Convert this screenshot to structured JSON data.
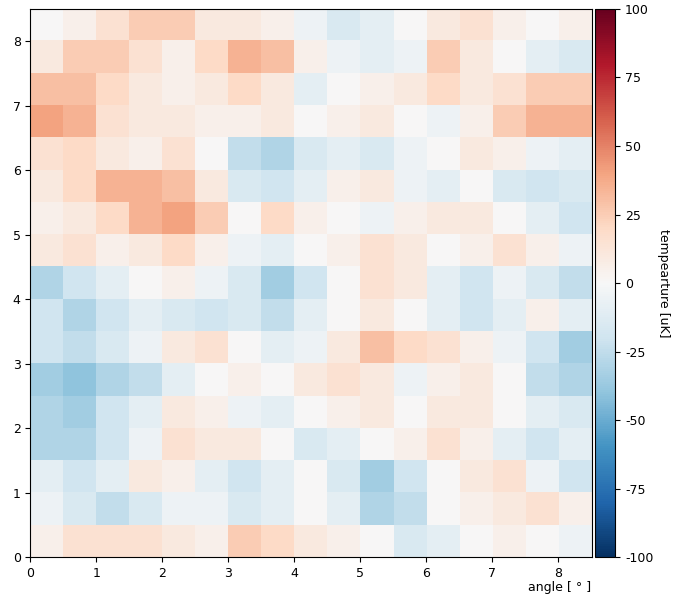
{
  "chart_data": {
    "type": "heatmap",
    "x_label": "angle [ ° ]",
    "colorbar_label": "tempearture [uK]",
    "xlim": [
      0,
      8.5
    ],
    "ylim": [
      0,
      8.5
    ],
    "xticks": [
      0,
      1,
      2,
      3,
      4,
      5,
      6,
      7,
      8
    ],
    "yticks": [
      0,
      1,
      2,
      3,
      4,
      5,
      6,
      7,
      8
    ],
    "colorbar_range": [
      -100,
      100
    ],
    "colorbar_ticks": [
      -100,
      -75,
      -50,
      -25,
      0,
      25,
      50,
      75,
      100
    ],
    "cells": [
      [
        5,
        15,
        15,
        15,
        10,
        5,
        25,
        20,
        10,
        5,
        0,
        -15,
        -10,
        0,
        5,
        0,
        -5
      ],
      [
        -5,
        -15,
        -25,
        -15,
        -5,
        -5,
        -15,
        -10,
        0,
        -10,
        -30,
        -25,
        0,
        5,
        10,
        15,
        5
      ],
      [
        -10,
        -20,
        -10,
        10,
        5,
        -10,
        -20,
        -10,
        0,
        -15,
        -35,
        -20,
        0,
        10,
        15,
        -5,
        -20
      ],
      [
        -30,
        -30,
        -20,
        -5,
        15,
        10,
        10,
        0,
        -15,
        -10,
        0,
        5,
        15,
        5,
        -10,
        -20,
        -10
      ],
      [
        -30,
        -35,
        -20,
        -10,
        10,
        5,
        -5,
        -10,
        0,
        5,
        10,
        0,
        10,
        10,
        0,
        -10,
        -15
      ],
      [
        -35,
        -40,
        -30,
        -25,
        -10,
        0,
        5,
        0,
        10,
        15,
        10,
        -5,
        5,
        10,
        0,
        -25,
        -30
      ],
      [
        -20,
        -25,
        -15,
        -5,
        10,
        15,
        0,
        -10,
        -5,
        10,
        30,
        20,
        15,
        5,
        -5,
        -20,
        -35
      ],
      [
        -20,
        -30,
        -20,
        -10,
        -15,
        -20,
        -15,
        -25,
        -10,
        0,
        10,
        0,
        -10,
        -20,
        -10,
        5,
        -10
      ],
      [
        -30,
        -20,
        -10,
        0,
        5,
        -5,
        -15,
        -35,
        -20,
        0,
        15,
        10,
        -10,
        -20,
        -5,
        -15,
        -25
      ],
      [
        10,
        15,
        5,
        10,
        20,
        5,
        -5,
        -10,
        0,
        5,
        15,
        10,
        0,
        5,
        15,
        5,
        -5
      ],
      [
        5,
        10,
        20,
        35,
        40,
        25,
        0,
        20,
        5,
        0,
        -5,
        5,
        10,
        10,
        0,
        -10,
        -20
      ],
      [
        10,
        20,
        35,
        35,
        30,
        10,
        -15,
        -20,
        -10,
        5,
        10,
        -5,
        -10,
        0,
        -15,
        -20,
        -15
      ],
      [
        15,
        20,
        10,
        5,
        15,
        0,
        -25,
        -30,
        -15,
        -10,
        -15,
        -5,
        0,
        10,
        5,
        -5,
        -10
      ],
      [
        40,
        35,
        15,
        10,
        10,
        5,
        5,
        10,
        0,
        5,
        10,
        0,
        -5,
        5,
        25,
        35,
        35
      ],
      [
        30,
        30,
        20,
        10,
        5,
        10,
        20,
        10,
        -10,
        0,
        5,
        10,
        20,
        10,
        15,
        25,
        25
      ],
      [
        10,
        25,
        25,
        15,
        5,
        20,
        35,
        30,
        5,
        -5,
        -10,
        -5,
        25,
        10,
        0,
        -10,
        -15
      ],
      [
        0,
        5,
        15,
        25,
        25,
        10,
        10,
        5,
        -5,
        -15,
        -10,
        0,
        10,
        15,
        5,
        0,
        5
      ]
    ]
  }
}
